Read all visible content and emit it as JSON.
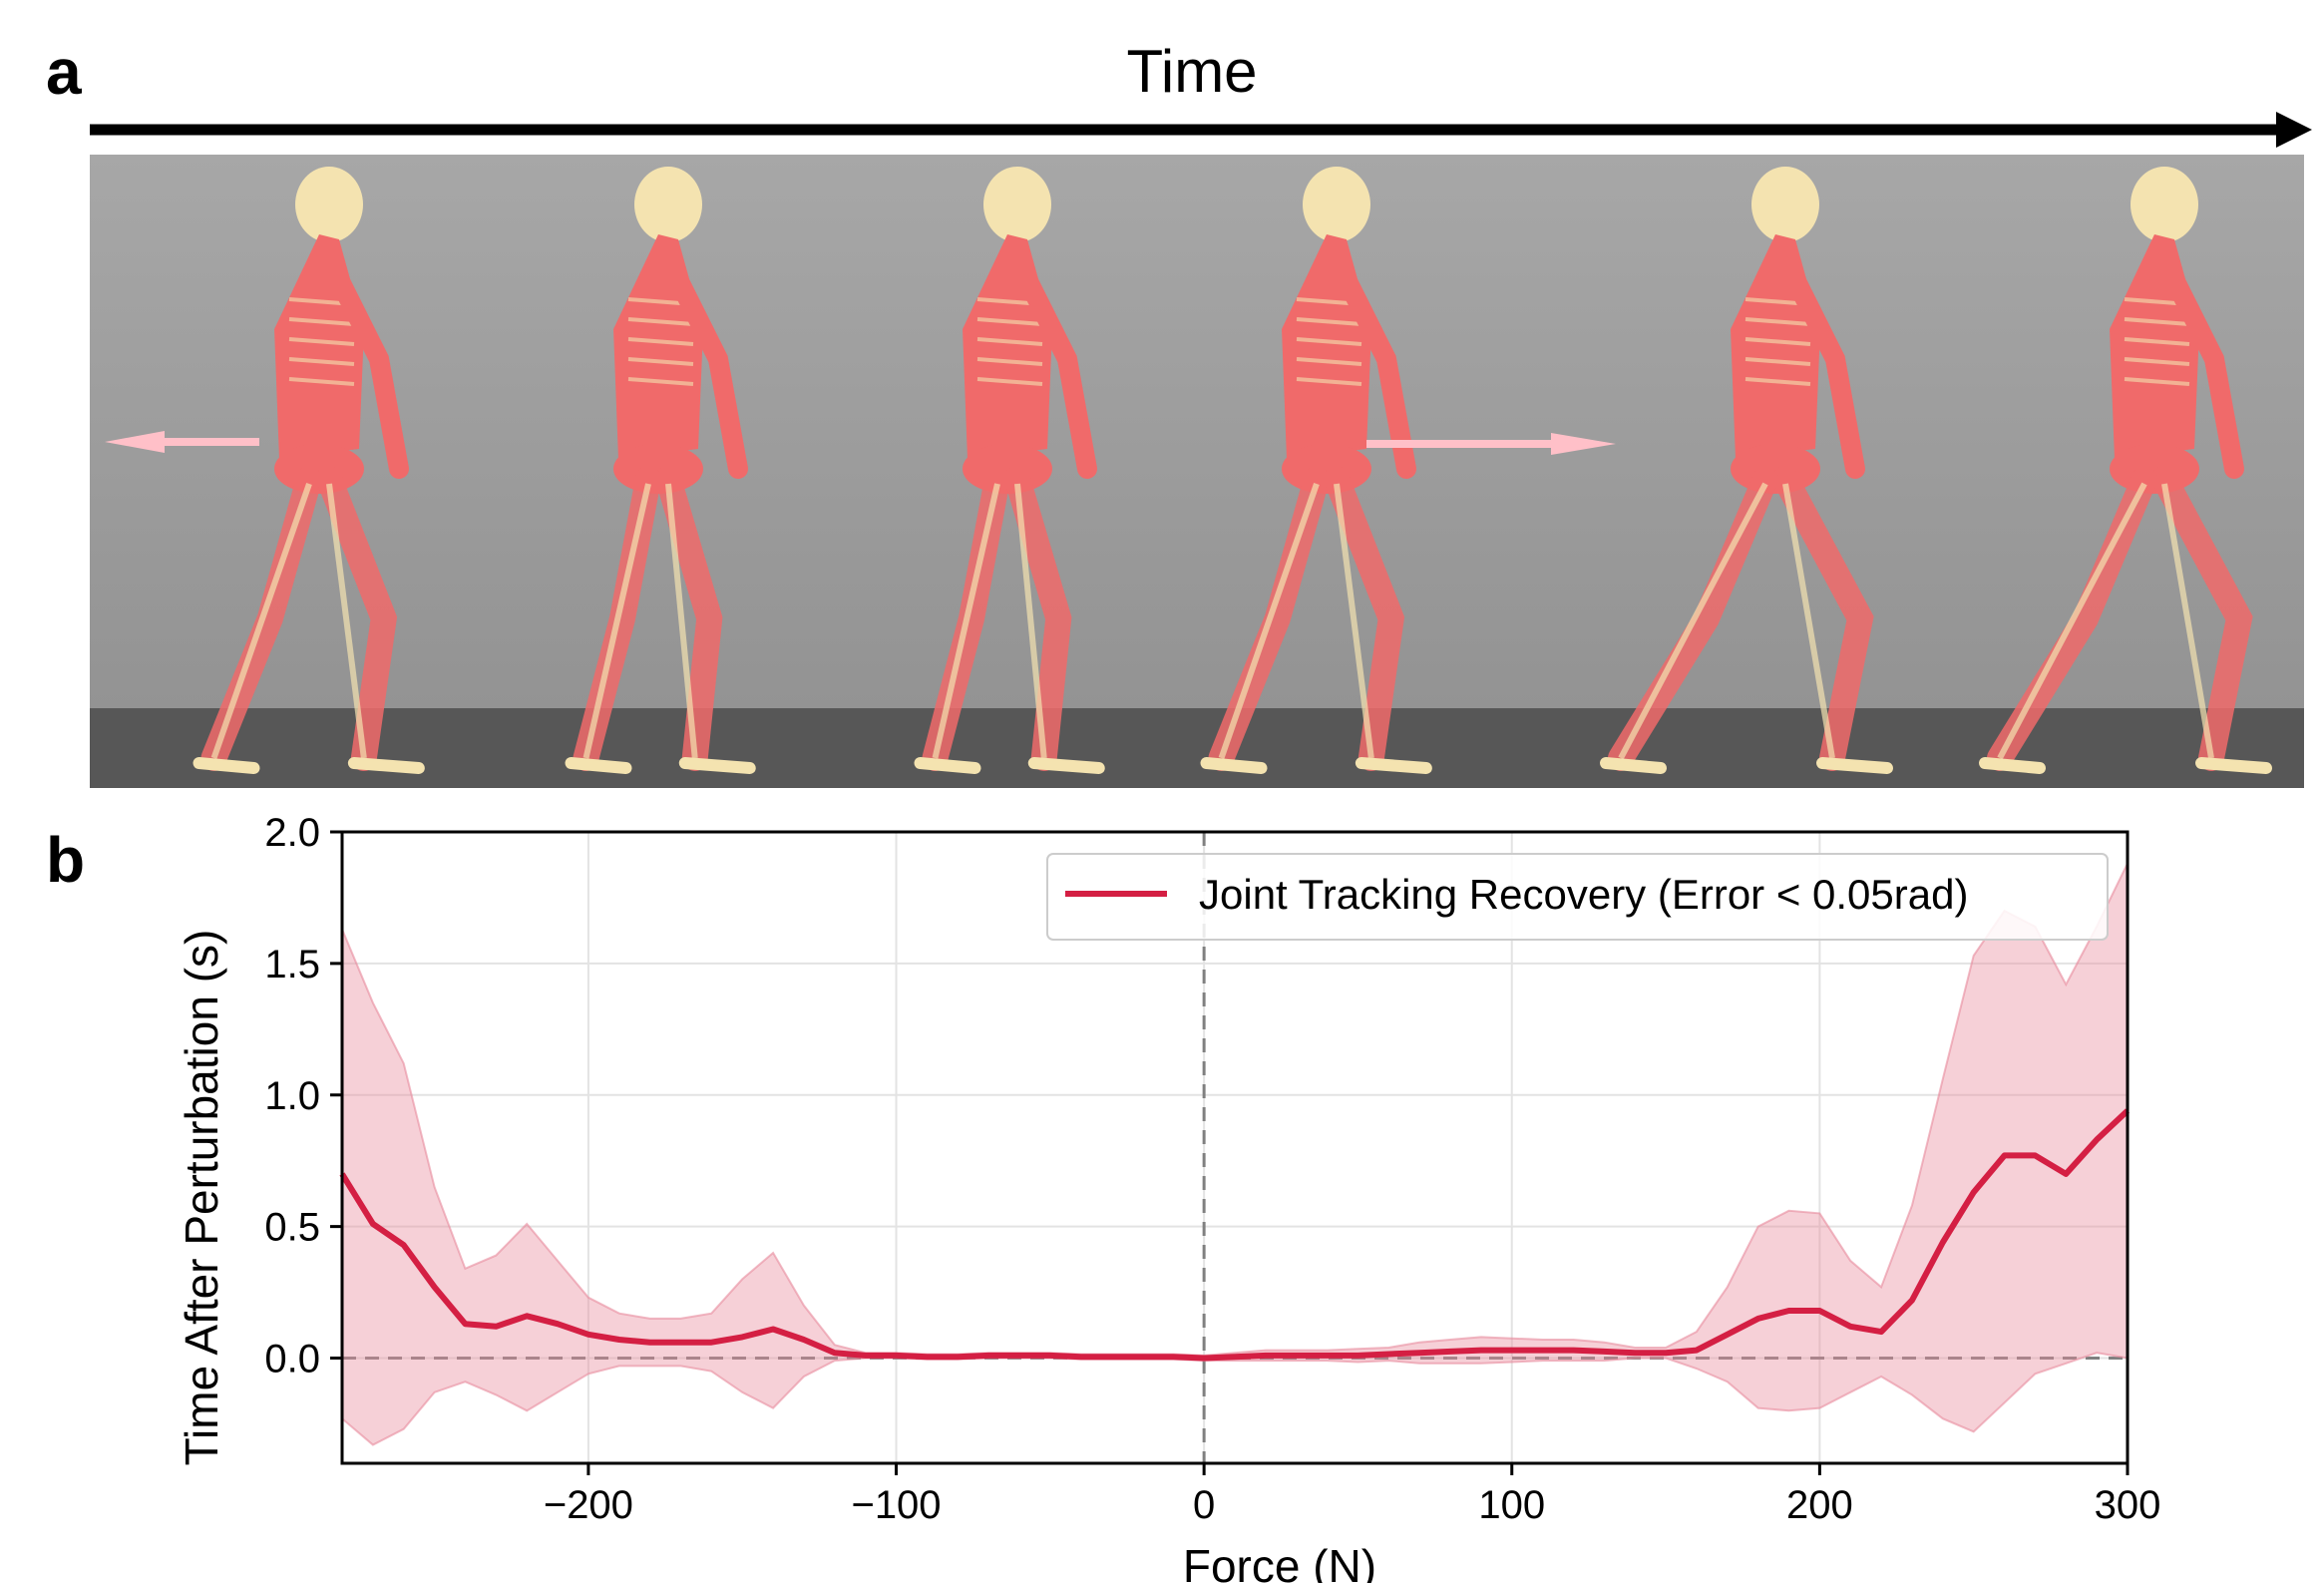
{
  "panel_labels": {
    "a": "a",
    "b": "b"
  },
  "panel_a": {
    "arrow_label": "Time",
    "scene": {
      "background_top": "#a7a7a7",
      "background_bottom": "#939393",
      "floor_color": "#575757",
      "muscle_color": "#f06a6a",
      "bone_color": "#f4e3b0",
      "force_arrow_color": "#ffc0c8",
      "frames": [
        {
          "pose": "push-backward-arrow"
        },
        {
          "pose": "stance"
        },
        {
          "pose": "stance"
        },
        {
          "pose": "push-forward-arrow"
        },
        {
          "pose": "stride"
        },
        {
          "pose": "stride"
        }
      ]
    }
  },
  "chart_data": {
    "type": "line",
    "title": "",
    "xlabel": "Force (N)",
    "ylabel": "Time After Perturbation (s)",
    "xlim": [
      -280,
      300
    ],
    "ylim": [
      -0.4,
      2.0
    ],
    "xticks": [
      -200,
      -100,
      0,
      100,
      200,
      300
    ],
    "xtick_labels": [
      "−200",
      "−100",
      "0",
      "100",
      "200",
      "300"
    ],
    "yticks": [
      0.0,
      0.5,
      1.0,
      1.5,
      2.0
    ],
    "ytick_labels": [
      "0.0",
      "0.5",
      "1.0",
      "1.5",
      "2.0"
    ],
    "grid": true,
    "legend_position": "top-right",
    "reference_lines": {
      "horizontal": 0,
      "vertical": 0,
      "style": "dashed",
      "color": "#808080"
    },
    "series": [
      {
        "name": "Joint Tracking Recovery (Error < 0.05rad)",
        "color": "#d41f43",
        "band_color": "#e88a9c",
        "x": [
          -280,
          -270,
          -260,
          -250,
          -240,
          -230,
          -220,
          -210,
          -200,
          -190,
          -180,
          -170,
          -160,
          -150,
          -140,
          -130,
          -120,
          -110,
          -100,
          -90,
          -80,
          -70,
          -60,
          -50,
          -40,
          -30,
          -20,
          -10,
          0,
          10,
          20,
          30,
          40,
          50,
          60,
          70,
          80,
          90,
          100,
          110,
          120,
          130,
          140,
          150,
          160,
          170,
          180,
          190,
          200,
          210,
          220,
          230,
          240,
          250,
          260,
          270,
          280,
          290,
          300
        ],
        "mean": [
          0.7,
          0.51,
          0.43,
          0.27,
          0.13,
          0.12,
          0.16,
          0.13,
          0.09,
          0.07,
          0.06,
          0.06,
          0.06,
          0.08,
          0.11,
          0.07,
          0.02,
          0.01,
          0.01,
          0.005,
          0.005,
          0.01,
          0.01,
          0.01,
          0.005,
          0.005,
          0.005,
          0.005,
          0.0,
          0.005,
          0.01,
          0.01,
          0.01,
          0.01,
          0.015,
          0.02,
          0.025,
          0.03,
          0.03,
          0.03,
          0.03,
          0.025,
          0.02,
          0.02,
          0.03,
          0.09,
          0.15,
          0.18,
          0.18,
          0.12,
          0.1,
          0.22,
          0.44,
          0.63,
          0.77,
          0.77,
          0.7,
          0.83,
          0.94
        ],
        "upper": [
          1.63,
          1.35,
          1.12,
          0.65,
          0.34,
          0.39,
          0.51,
          0.37,
          0.23,
          0.17,
          0.15,
          0.15,
          0.17,
          0.3,
          0.4,
          0.2,
          0.05,
          0.02,
          0.02,
          0.015,
          0.015,
          0.02,
          0.02,
          0.02,
          0.015,
          0.015,
          0.015,
          0.015,
          0.01,
          0.02,
          0.03,
          0.03,
          0.03,
          0.035,
          0.04,
          0.06,
          0.07,
          0.08,
          0.075,
          0.07,
          0.07,
          0.06,
          0.04,
          0.04,
          0.1,
          0.27,
          0.5,
          0.56,
          0.55,
          0.37,
          0.27,
          0.58,
          1.06,
          1.53,
          1.7,
          1.64,
          1.42,
          1.64,
          1.88
        ],
        "lower": [
          -0.23,
          -0.33,
          -0.27,
          -0.13,
          -0.09,
          -0.14,
          -0.2,
          -0.13,
          -0.06,
          -0.03,
          -0.03,
          -0.03,
          -0.05,
          -0.13,
          -0.19,
          -0.07,
          -0.01,
          0.0,
          0.0,
          -0.005,
          -0.005,
          0.0,
          0.0,
          0.0,
          -0.005,
          -0.005,
          -0.005,
          -0.005,
          -0.01,
          -0.01,
          -0.01,
          -0.01,
          -0.01,
          -0.015,
          -0.01,
          -0.02,
          -0.02,
          -0.02,
          -0.015,
          -0.01,
          -0.01,
          -0.01,
          0.0,
          0.0,
          -0.04,
          -0.09,
          -0.19,
          -0.2,
          -0.19,
          -0.13,
          -0.07,
          -0.14,
          -0.23,
          -0.28,
          -0.17,
          -0.06,
          -0.02,
          0.02,
          0.0
        ]
      }
    ]
  }
}
